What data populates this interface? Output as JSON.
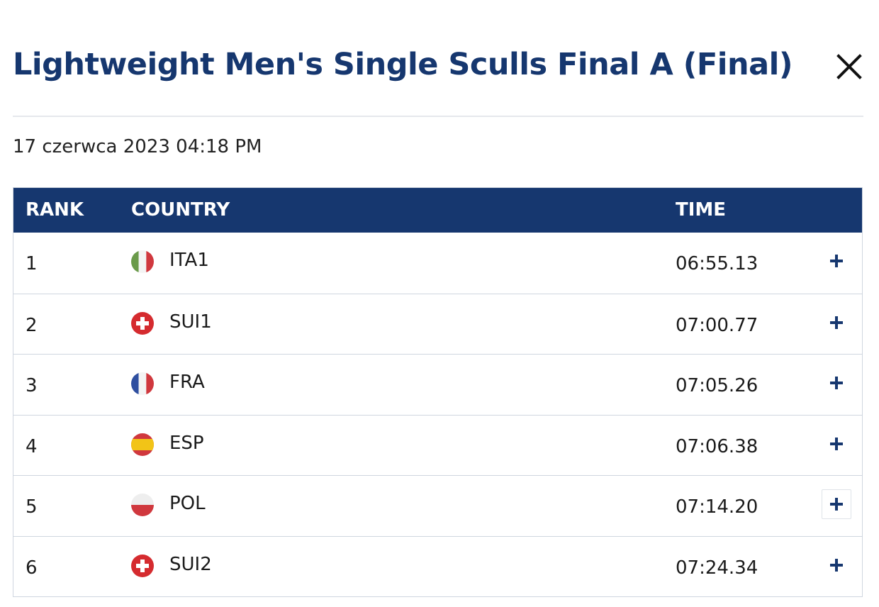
{
  "header": {
    "title": "Lightweight Men's Single Sculls Final A (Final)",
    "close_icon": "close-icon"
  },
  "datetime": "17 czerwca 2023 04:18 PM",
  "table": {
    "columns": {
      "rank": "RANK",
      "country": "COUNTRY",
      "time": "TIME"
    },
    "rows": [
      {
        "rank": "1",
        "country": "ITA1",
        "flag": "italy-flag-icon",
        "time": "06:55.13",
        "expand_icon": "plus-icon"
      },
      {
        "rank": "2",
        "country": "SUI1",
        "flag": "switzerland-flag-icon",
        "time": "07:00.77",
        "expand_icon": "plus-icon"
      },
      {
        "rank": "3",
        "country": "FRA",
        "flag": "france-flag-icon",
        "time": "07:05.26",
        "expand_icon": "plus-icon"
      },
      {
        "rank": "4",
        "country": "ESP",
        "flag": "spain-flag-icon",
        "time": "07:06.38",
        "expand_icon": "plus-icon"
      },
      {
        "rank": "5",
        "country": "POL",
        "flag": "poland-flag-icon",
        "time": "07:14.20",
        "expand_icon": "plus-icon"
      },
      {
        "rank": "6",
        "country": "SUI2",
        "flag": "switzerland-flag-icon",
        "time": "07:24.34",
        "expand_icon": "plus-icon"
      }
    ]
  },
  "colors": {
    "primary": "#16376f",
    "border": "#cfd6df",
    "divider": "#e6e8ec"
  }
}
